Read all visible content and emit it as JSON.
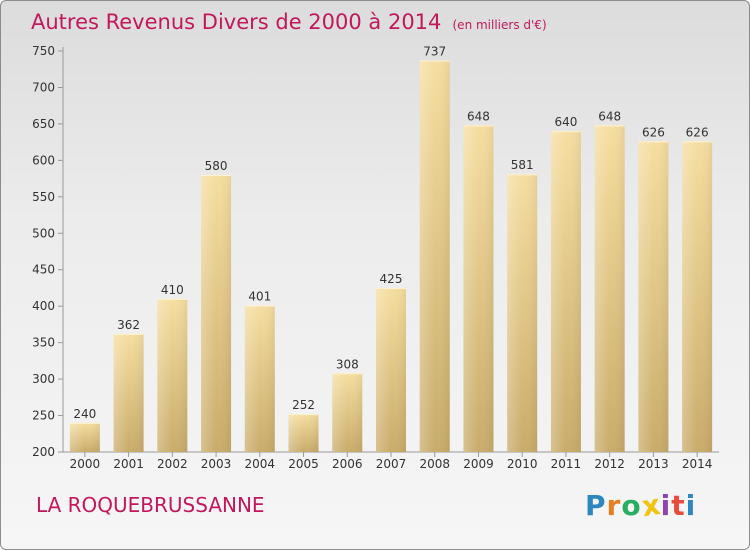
{
  "chart_data": {
    "type": "bar",
    "title": "Autres Revenus Divers de 2000 à 2014",
    "subtitle": "(en milliers d'€)",
    "categories": [
      "2000",
      "2001",
      "2002",
      "2003",
      "2004",
      "2005",
      "2006",
      "2007",
      "2008",
      "2009",
      "2010",
      "2011",
      "2012",
      "2013",
      "2014"
    ],
    "values": [
      240,
      362,
      410,
      580,
      401,
      252,
      308,
      425,
      737,
      648,
      581,
      640,
      648,
      626,
      626
    ],
    "ylim": [
      200,
      750
    ],
    "yticks": [
      200,
      250,
      300,
      350,
      400,
      450,
      500,
      550,
      600,
      650,
      700,
      750
    ],
    "xlabel": "",
    "ylabel": "",
    "grid": false,
    "bar_color": "#e6c98a"
  },
  "commune": "LA ROQUEBRUSSANNE",
  "logo": {
    "letters": [
      "P",
      "r",
      "o",
      "x",
      "i",
      "t",
      "i"
    ],
    "colors": [
      "#2e86c1",
      "#e67e22",
      "#27ae60",
      "#f1c40f",
      "#8e44ad",
      "#e74c3c",
      "#2e86c1"
    ]
  }
}
